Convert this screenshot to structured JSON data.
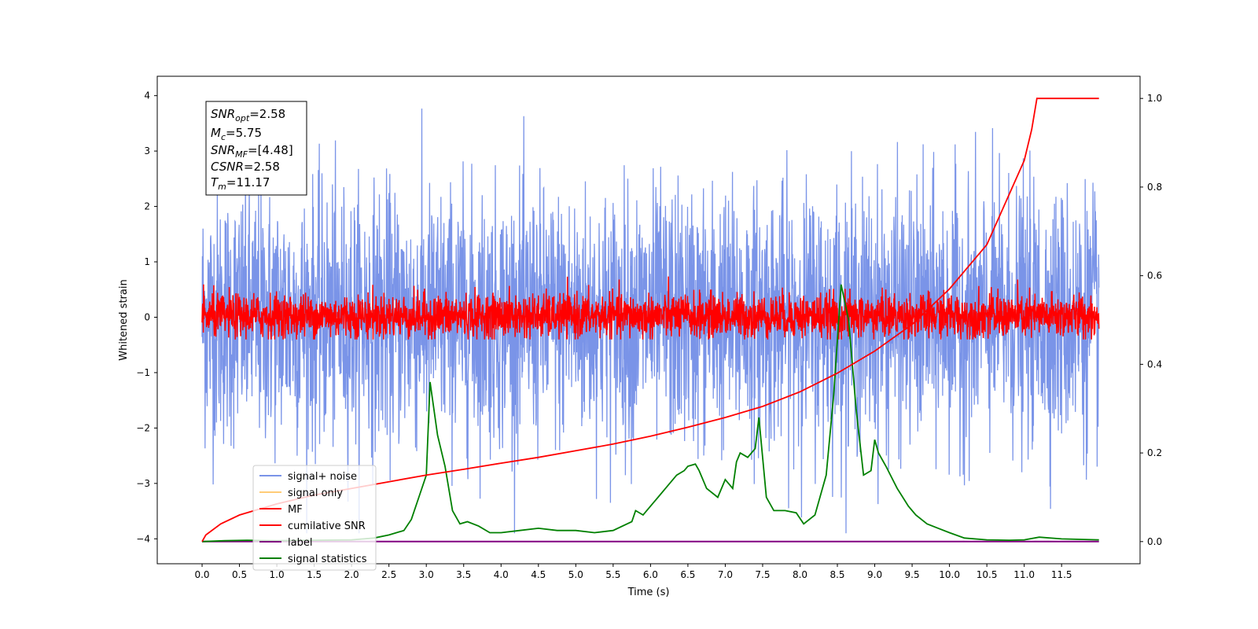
{
  "chart_data": {
    "type": "line",
    "xlabel": "Time (s)",
    "ylabel_left": "Whitened strain",
    "ylabel_right": "",
    "xlim": [
      -0.6,
      12.55
    ],
    "ylim_left": [
      -4.45,
      4.35
    ],
    "ylim_right": [
      -0.05,
      1.05
    ],
    "x_ticks": [
      "0.0",
      "0.5",
      "1.0",
      "1.5",
      "2.0",
      "2.5",
      "3.0",
      "3.5",
      "4.0",
      "4.5",
      "5.0",
      "5.5",
      "6.0",
      "6.5",
      "7.0",
      "7.5",
      "8.0",
      "8.5",
      "9.0",
      "9.5",
      "10.0",
      "10.5",
      "11.0",
      "11.5"
    ],
    "y_ticks_left": [
      "−4",
      "−3",
      "−2",
      "−1",
      "0",
      "1",
      "2",
      "3",
      "4"
    ],
    "y_ticks_right": [
      "0.0",
      "0.2",
      "0.4",
      "0.6",
      "0.8",
      "1.0"
    ],
    "grid": false,
    "legend_position": "lower-left",
    "info_box": {
      "snr_opt": "SNR",
      "snr_opt_sub": "opt",
      "snr_opt_val": "=2.58",
      "mc": "M",
      "mc_sub": "c",
      "mc_val": "=5.75",
      "snr_mf": "SNR",
      "snr_mf_sub": "MF",
      "snr_mf_val": "=[4.48]",
      "csnr": "CSNR",
      "csnr_val": "=2.58",
      "tm": "T",
      "tm_sub": "m",
      "tm_val": "=11.17"
    },
    "series": [
      {
        "name": "signal+ noise",
        "color": "#7a94e8",
        "axis": "left",
        "x_range": [
          0.0,
          12.0
        ],
        "approx_range": [
          -3.9,
          3.9
        ],
        "std_estimate": 1.15
      },
      {
        "name": "signal only",
        "color": "#ffcc77",
        "axis": "left",
        "values": []
      },
      {
        "name": "MF",
        "color": "#ff0000",
        "axis": "left",
        "x_range": [
          0.0,
          12.0
        ],
        "approx_range": [
          -0.4,
          1.0
        ],
        "std_estimate": 0.2
      },
      {
        "name": "cumilative SNR",
        "color": "#ff0000",
        "axis": "right",
        "x": [
          0.0,
          0.05,
          0.25,
          0.5,
          1.0,
          1.5,
          2.0,
          2.5,
          3.0,
          3.5,
          4.0,
          4.5,
          5.0,
          5.5,
          6.0,
          6.5,
          7.0,
          7.5,
          8.0,
          8.5,
          9.0,
          9.5,
          10.0,
          10.5,
          11.0,
          11.1,
          11.17,
          11.5,
          12.0
        ],
        "y": [
          0.0,
          0.015,
          0.04,
          0.06,
          0.085,
          0.105,
          0.12,
          0.135,
          0.15,
          0.163,
          0.177,
          0.19,
          0.205,
          0.22,
          0.238,
          0.258,
          0.28,
          0.305,
          0.338,
          0.38,
          0.43,
          0.49,
          0.57,
          0.67,
          0.86,
          0.93,
          1.0,
          1.0,
          1.0
        ]
      },
      {
        "name": "label",
        "color": "#800080",
        "axis": "right",
        "x": [
          0.0,
          12.0
        ],
        "y": [
          0.0,
          0.0
        ]
      },
      {
        "name": "signal statistics",
        "color": "#008000",
        "axis": "right",
        "x": [
          0.0,
          0.3,
          0.6,
          1.0,
          1.5,
          2.0,
          2.3,
          2.5,
          2.7,
          2.8,
          2.9,
          3.0,
          3.05,
          3.15,
          3.25,
          3.35,
          3.45,
          3.55,
          3.7,
          3.85,
          4.0,
          4.25,
          4.5,
          4.75,
          5.0,
          5.25,
          5.5,
          5.75,
          5.8,
          5.9,
          6.0,
          6.1,
          6.2,
          6.35,
          6.45,
          6.5,
          6.6,
          6.65,
          6.75,
          6.9,
          7.0,
          7.1,
          7.15,
          7.2,
          7.3,
          7.4,
          7.45,
          7.55,
          7.65,
          7.8,
          7.95,
          8.05,
          8.2,
          8.35,
          8.45,
          8.55,
          8.65,
          8.75,
          8.85,
          8.95,
          9.0,
          9.05,
          9.15,
          9.3,
          9.45,
          9.55,
          9.7,
          9.85,
          10.0,
          10.2,
          10.5,
          10.8,
          11.0,
          11.2,
          11.5,
          12.0
        ],
        "y": [
          0.0,
          0.002,
          0.003,
          0.002,
          0.003,
          0.004,
          0.008,
          0.015,
          0.025,
          0.05,
          0.1,
          0.15,
          0.36,
          0.24,
          0.17,
          0.07,
          0.04,
          0.045,
          0.035,
          0.02,
          0.02,
          0.025,
          0.03,
          0.025,
          0.025,
          0.02,
          0.025,
          0.045,
          0.07,
          0.06,
          0.08,
          0.1,
          0.12,
          0.15,
          0.16,
          0.17,
          0.175,
          0.16,
          0.12,
          0.1,
          0.14,
          0.12,
          0.18,
          0.2,
          0.19,
          0.21,
          0.28,
          0.1,
          0.07,
          0.07,
          0.065,
          0.04,
          0.06,
          0.15,
          0.33,
          0.58,
          0.5,
          0.3,
          0.15,
          0.16,
          0.23,
          0.2,
          0.17,
          0.12,
          0.08,
          0.06,
          0.04,
          0.03,
          0.02,
          0.008,
          0.004,
          0.003,
          0.004,
          0.01,
          0.006,
          0.004
        ]
      }
    ]
  }
}
